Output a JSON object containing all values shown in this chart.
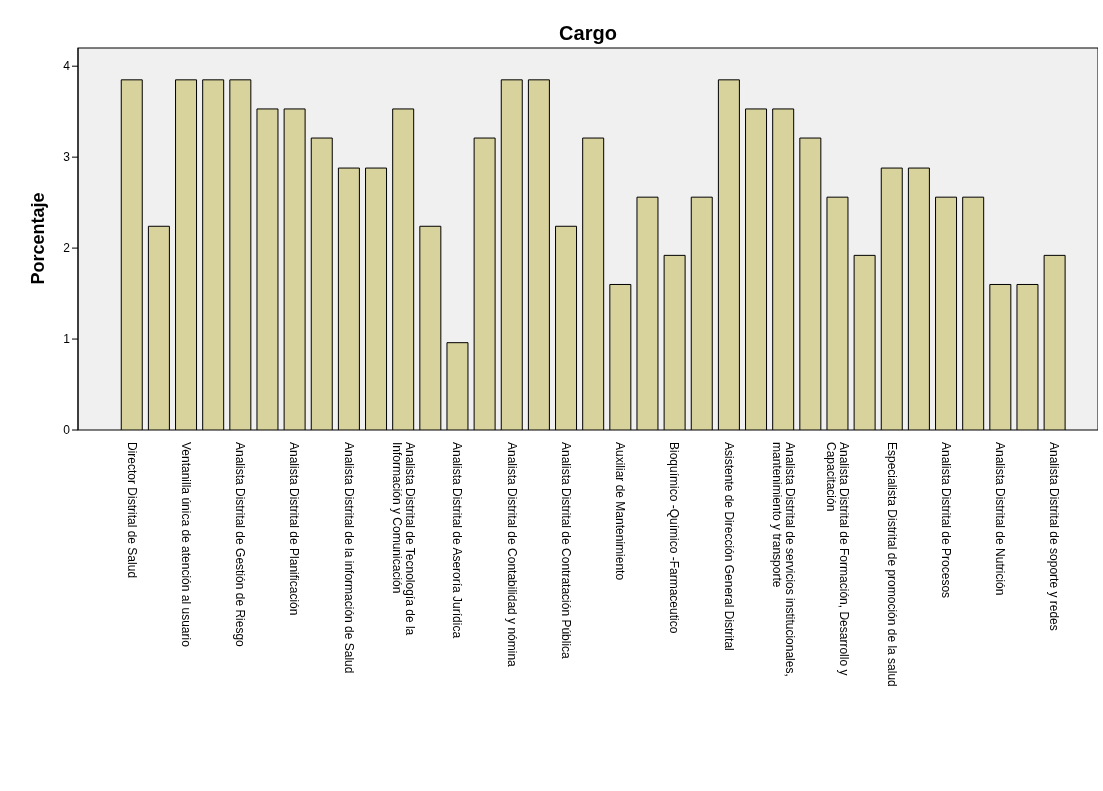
{
  "chart_data": {
    "type": "bar",
    "title": "Cargo",
    "ylabel": "Porcentaje",
    "categories": [
      "Director Distrital de Salud",
      null,
      "Ventanilla única de atención al usuario",
      null,
      "Analista Distrital de Gestión de Riesgo",
      null,
      "Analista Distrital de Planificación",
      null,
      "Analista Distrital de la información de Salud",
      null,
      "Analista Distrital de Tecnología de la Información y Comunicación",
      null,
      "Analista Distrital de Aseroría Jurídica",
      null,
      "Analista Distrital de Contabilidad y nómina",
      null,
      "Analista Distrital de Contratación Pública",
      null,
      "Auxiliar de Mantenimiento",
      null,
      "Bioquímico -Químico -Farmaceutico",
      null,
      "Asistente de Dirección General Distrital",
      null,
      "Analista Distrital de servicios institucionales, mantenimiento y transporte",
      null,
      "Analista Distrital de Formación, Desarrollo y Capacitación",
      null,
      "Especialista Distrital de promoción de la salud",
      null,
      "Analista Distrital de Procesos",
      null,
      "Analista Distrital de Nutrición",
      null,
      "Analista Distrital de soporte y redes"
    ],
    "values": [
      3.85,
      2.24,
      3.85,
      3.85,
      3.85,
      3.53,
      3.53,
      3.21,
      2.88,
      2.88,
      3.53,
      2.24,
      0.96,
      3.21,
      3.85,
      3.85,
      2.24,
      3.21,
      1.6,
      2.56,
      1.92,
      2.56,
      3.85,
      3.53,
      3.53,
      3.21,
      2.56,
      1.92,
      2.88,
      2.88,
      2.56,
      2.56,
      1.6,
      1.6,
      1.92
    ],
    "color": "#d8d29c",
    "ylim": [
      0,
      4.2
    ],
    "yticks": [
      0,
      1,
      2,
      3,
      4
    ]
  }
}
